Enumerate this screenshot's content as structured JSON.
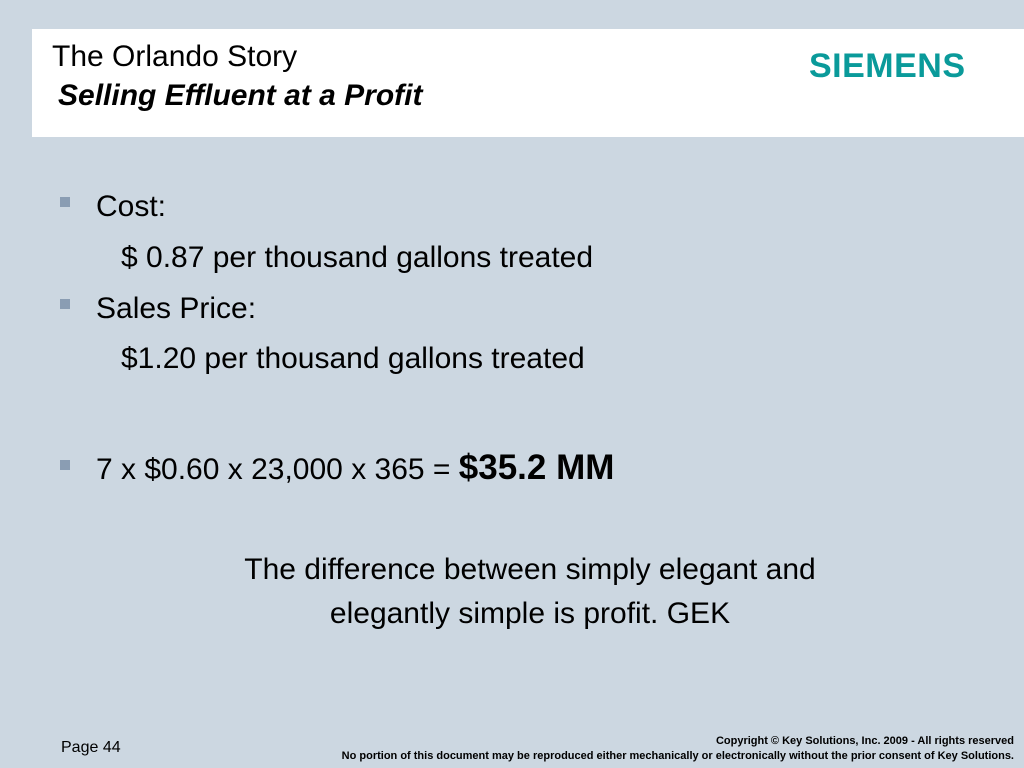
{
  "header": {
    "title": "The Orlando Story",
    "subtitle": "Selling Effluent at a Profit",
    "logo_text": "SIEMENS",
    "logo_color": "#0a9a9a"
  },
  "content": {
    "bullet_1": "Cost:",
    "bullet_1_detail": "$ 0.87 per thousand gallons treated",
    "bullet_2": "Sales Price:",
    "bullet_2_detail": "$1.20 per thousand gallons treated",
    "bullet_3_equation": "7  x  $0.60 x  23,000  x  365 =",
    "bullet_3_result": "$35.2 MM"
  },
  "quote": {
    "line_1": "The difference between simply elegant and",
    "line_2": "elegantly simple is profit.    GEK"
  },
  "footer": {
    "page_label": "Page 44",
    "copyright_line_1": "Copyright © Key Solutions, Inc. 2009  -  All rights reserved",
    "copyright_line_2": "No portion of this document may be reproduced either mechanically or electronically without the prior consent of Key Solutions."
  },
  "colors": {
    "background": "#ccd7e1",
    "header_panel": "#ffffff",
    "bullet": "#8a9db3",
    "text": "#000000"
  }
}
